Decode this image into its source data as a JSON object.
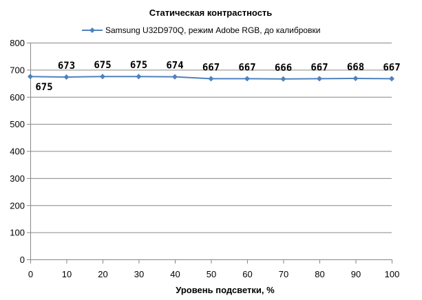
{
  "chart_data": {
    "type": "line",
    "title": "Статическая контрастность",
    "xlabel": "Уровень подсветки, %",
    "ylabel": "",
    "x": [
      0,
      10,
      20,
      30,
      40,
      50,
      60,
      70,
      80,
      90,
      100
    ],
    "xlim": [
      0,
      100
    ],
    "ylim": [
      0,
      800
    ],
    "yticks": [
      0,
      100,
      200,
      300,
      400,
      500,
      600,
      700,
      800
    ],
    "grid": true,
    "legend_position": "top",
    "series": [
      {
        "name": "Samsung U32D970Q,  режим Adobe RGB, до калибровки",
        "values": [
          675,
          673,
          675,
          675,
          674,
          667,
          667,
          666,
          667,
          668,
          667
        ],
        "color": "#4f81bd",
        "marker": "diamond"
      }
    ]
  }
}
